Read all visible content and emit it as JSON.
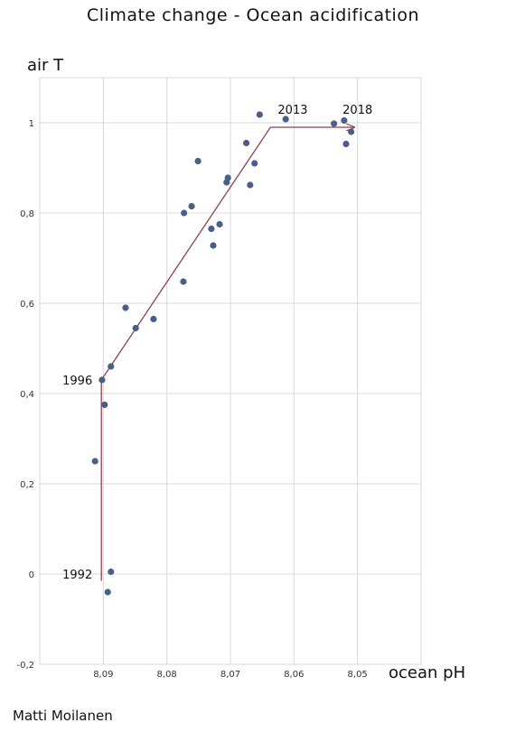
{
  "chart_data": {
    "type": "scatter",
    "title": "Climate change - Ocean acidification",
    "ylabel": "air T",
    "xlabel": "ocean pH",
    "x_reversed": true,
    "xlim": [
      8.1,
      8.04
    ],
    "ylim": [
      -0.2,
      1.1
    ],
    "x_ticks": [
      8.09,
      8.08,
      8.07,
      8.06,
      8.05
    ],
    "x_tick_labels": [
      "8,09",
      "8,08",
      "8,07",
      "8,06",
      "8,05"
    ],
    "y_ticks": [
      -0.2,
      0,
      0.2,
      0.4,
      0.6,
      0.8,
      1
    ],
    "y_tick_labels": [
      "-0,2",
      "0",
      "0,2",
      "0,4",
      "0,6",
      "0,8",
      "1"
    ],
    "grid": true,
    "series": [
      {
        "points": [
          {
            "x": 8.0913,
            "y": 0.25
          },
          {
            "x": 8.0898,
            "y": 0.375
          },
          {
            "x": 8.0902,
            "y": 0.43
          },
          {
            "x": 8.0888,
            "y": 0.005
          },
          {
            "x": 8.0893,
            "y": -0.04
          },
          {
            "x": 8.0888,
            "y": 0.46
          },
          {
            "x": 8.0865,
            "y": 0.59
          },
          {
            "x": 8.0849,
            "y": 0.545
          },
          {
            "x": 8.0821,
            "y": 0.565
          },
          {
            "x": 8.0774,
            "y": 0.648
          },
          {
            "x": 8.0773,
            "y": 0.8
          },
          {
            "x": 8.0761,
            "y": 0.815
          },
          {
            "x": 8.0751,
            "y": 0.915
          },
          {
            "x": 8.073,
            "y": 0.765
          },
          {
            "x": 8.0727,
            "y": 0.728
          },
          {
            "x": 8.0717,
            "y": 0.775
          },
          {
            "x": 8.0706,
            "y": 0.868
          },
          {
            "x": 8.0704,
            "y": 0.878
          },
          {
            "x": 8.0675,
            "y": 0.955
          },
          {
            "x": 8.0669,
            "y": 0.862
          },
          {
            "x": 8.0662,
            "y": 0.91
          },
          {
            "x": 8.0654,
            "y": 1.018
          },
          {
            "x": 8.0613,
            "y": 1.008
          },
          {
            "x": 8.0537,
            "y": 0.998
          },
          {
            "x": 8.0521,
            "y": 1.005
          },
          {
            "x": 8.0518,
            "y": 0.953
          },
          {
            "x": 8.051,
            "y": 0.98
          }
        ]
      }
    ],
    "trend_line": [
      {
        "x": 8.0903,
        "y": -0.015
      },
      {
        "x": 8.0903,
        "y": 0.43
      },
      {
        "x": 8.0637,
        "y": 0.99
      },
      {
        "x": 8.0505,
        "y": 0.99
      }
    ],
    "annotations": [
      {
        "text": "1992",
        "x": 8.0903,
        "y": 0.0,
        "side": "left"
      },
      {
        "text": "1996",
        "x": 8.0903,
        "y": 0.43,
        "side": "left"
      },
      {
        "text": "2013",
        "x": 8.0634,
        "y": 1.03,
        "side": "right"
      },
      {
        "text": "2018",
        "x": 8.0532,
        "y": 1.03,
        "side": "right"
      }
    ],
    "point_color": "#4a5e8c",
    "trend_color": "#8b4450",
    "grid_color": "#d9d9d9"
  },
  "author": "Matti Moilanen"
}
